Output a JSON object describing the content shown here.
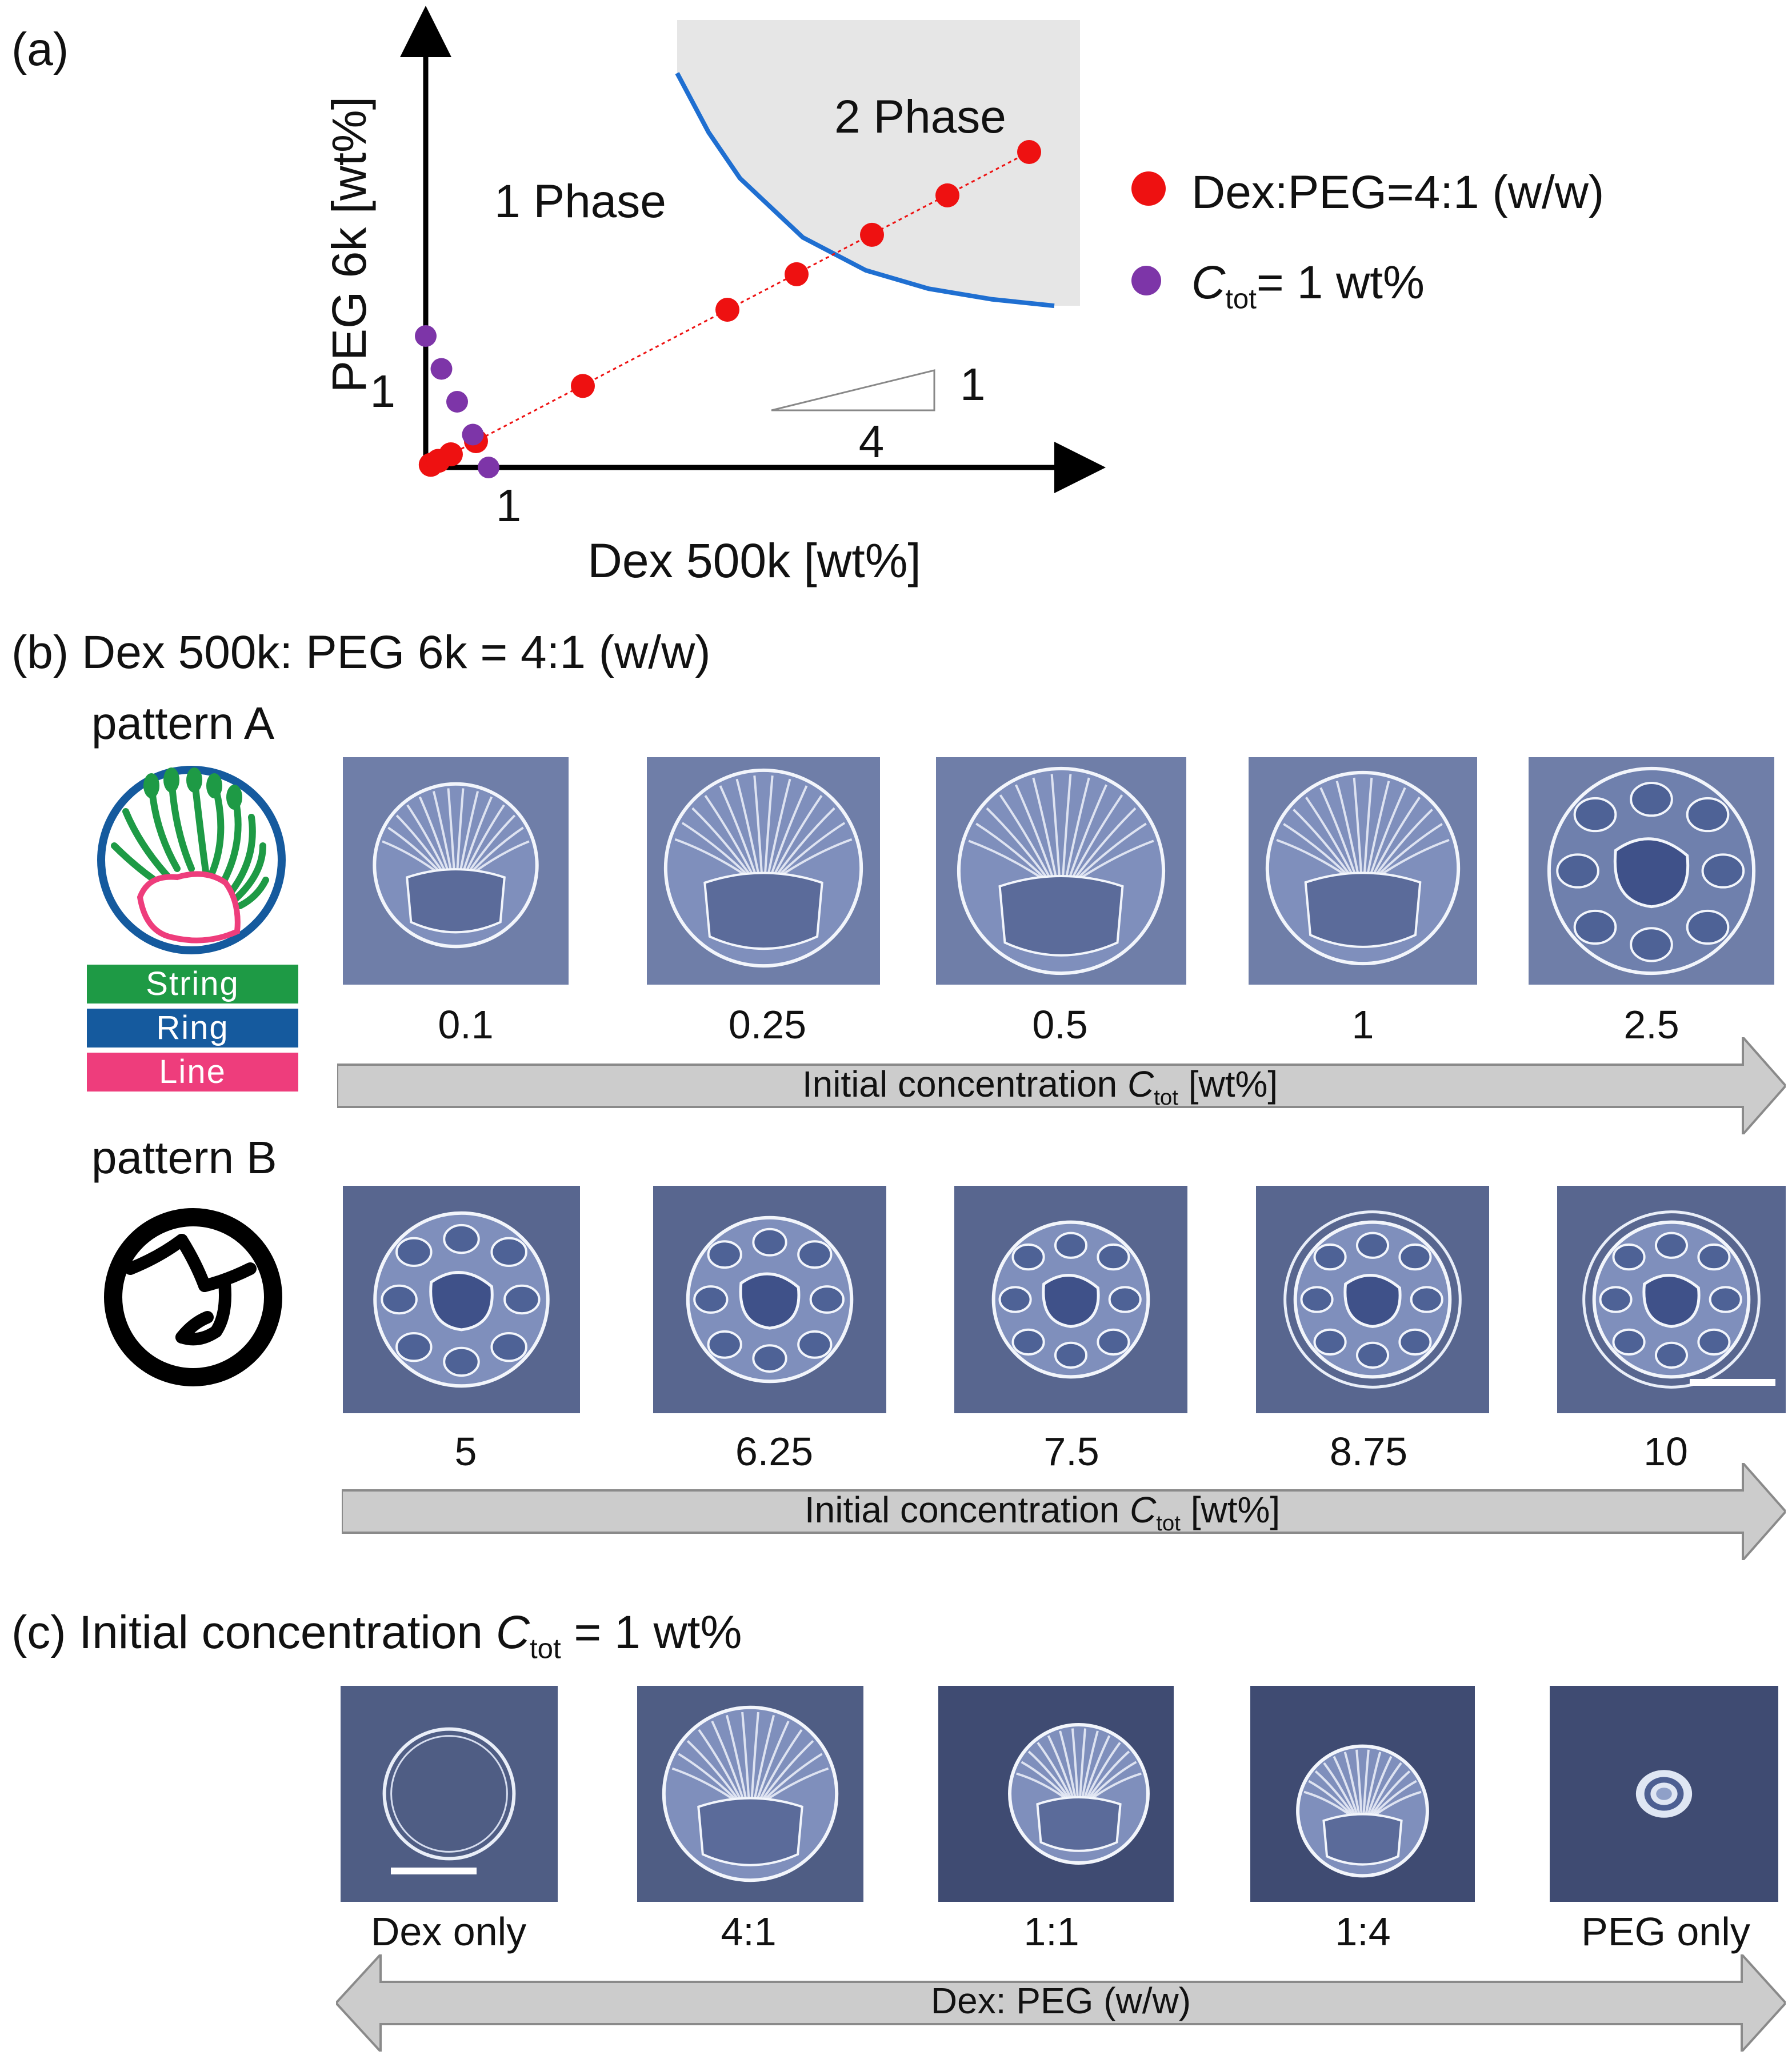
{
  "panel_a": {
    "label": "(a)",
    "chart_data": {
      "type": "scatter",
      "title": "",
      "xlabel": "Dex 500k [wt%]",
      "ylabel": "PEG 6k [wt%]",
      "xlim": [
        0,
        10
      ],
      "ylim": [
        0,
        3
      ],
      "x_tick": "1",
      "y_tick": "1",
      "regions": [
        {
          "name": "one_phase",
          "label": "1 Phase"
        },
        {
          "name": "two_phase",
          "label": "2 Phase",
          "fill": "#e6e6e6"
        }
      ],
      "binodal": {
        "color": "#1f6fd1",
        "x": [
          4.0,
          4.5,
          5.0,
          6.0,
          7.0,
          8.0,
          9.0,
          10.0
        ],
        "y": [
          3.0,
          2.55,
          2.2,
          1.75,
          1.5,
          1.36,
          1.28,
          1.23
        ]
      },
      "slope_marker": {
        "rise": "1",
        "run": "4"
      },
      "series": [
        {
          "name": "Dex:PEG=4:1 (w/w)",
          "color": "#ee1111",
          "x": [
            0.08,
            0.2,
            0.4,
            0.8,
            2.5,
            4.8,
            5.9,
            7.1,
            8.3,
            9.6
          ],
          "y": [
            0.02,
            0.05,
            0.1,
            0.2,
            0.62,
            1.2,
            1.47,
            1.77,
            2.07,
            2.4
          ]
        },
        {
          "name": "Ctot= 1 wt%",
          "color": "#7d35a8",
          "x": [
            0.0,
            0.25,
            0.5,
            0.75,
            1.0
          ],
          "y": [
            1.0,
            0.75,
            0.5,
            0.25,
            0.0
          ]
        }
      ],
      "legend": [
        {
          "text": "Dex:PEG=4:1 (w/w)",
          "color": "#ee1111"
        },
        {
          "sym": "C",
          "sub": "tot",
          "rest": "= 1 wt%",
          "color": "#7d35a8"
        }
      ]
    }
  },
  "panel_b": {
    "label": "(b) Dex 500k: PEG 6k = 4:1 (w/w)",
    "pattern_a": {
      "title": "pattern A",
      "legend": [
        {
          "text": "String",
          "color": "#1e9a45"
        },
        {
          "text": "Ring",
          "color": "#155a9e"
        },
        {
          "text": "Line",
          "color": "#ee3d7c"
        }
      ],
      "captions": [
        "0.1",
        "0.25",
        "0.5",
        "1",
        "2.5"
      ]
    },
    "pattern_b": {
      "title": "pattern B",
      "captions": [
        "5",
        "6.25",
        "7.5",
        "8.75",
        "10"
      ]
    },
    "arrow": {
      "text": "Initial concentration ",
      "sym": "C",
      "sub": "tot",
      "rest": " [wt%]"
    }
  },
  "panel_c": {
    "label_pre": "(c) Initial concentration ",
    "sym": "C",
    "sub": "tot",
    "label_post": " = 1 wt%",
    "captions": [
      "Dex only",
      "4:1",
      "1:1",
      "1:4",
      "PEG only"
    ],
    "arrow_text": "Dex: PEG (w/w)"
  }
}
